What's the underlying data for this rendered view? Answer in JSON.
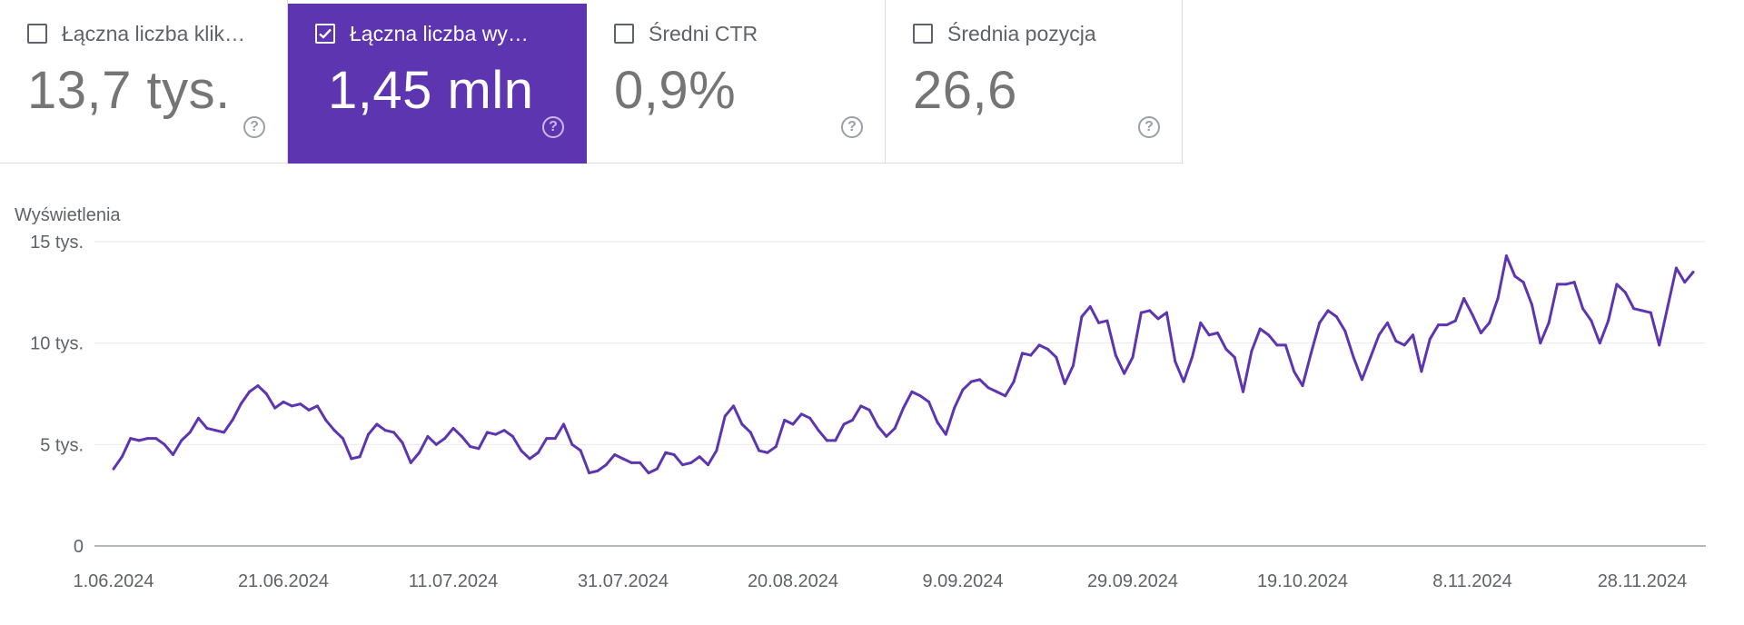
{
  "metric_cards": [
    {
      "title": "Łączna liczba klik…",
      "value": "13,7 tys.",
      "checked": false,
      "help_icon": "help-circle-icon"
    },
    {
      "title": "Łączna liczba wy…",
      "value": "1,45 mln",
      "checked": true,
      "help_icon": "help-circle-icon"
    },
    {
      "title": "Średni CTR",
      "value": "0,9%",
      "checked": false,
      "help_icon": "help-circle-icon"
    },
    {
      "title": "Średnia pozycja",
      "value": "26,6",
      "checked": false,
      "help_icon": "help-circle-icon"
    }
  ],
  "colors": {
    "accent": "#5e35b1",
    "line": "#5e35b1",
    "grid": "#e8eaed",
    "axis": "#9aa0a6",
    "text": "#5f6368"
  },
  "chart_data": {
    "type": "line",
    "ylabel": "Wyświetlenia",
    "ylim": [
      0,
      15000
    ],
    "y_ticks": [
      {
        "value": 0,
        "label": "0"
      },
      {
        "value": 5000,
        "label": "5 tys."
      },
      {
        "value": 10000,
        "label": "10 tys."
      },
      {
        "value": 15000,
        "label": "15 tys."
      }
    ],
    "x_tick_labels": [
      "1.06.2024",
      "21.06.2024",
      "11.07.2024",
      "31.07.2024",
      "20.08.2024",
      "9.09.2024",
      "29.09.2024",
      "19.10.2024",
      "8.11.2024",
      "28.11.2024"
    ],
    "x_tick_interval_days": 20,
    "grid": true,
    "legend": "none",
    "series": [
      {
        "values": [
          3800,
          4400,
          5300,
          5200,
          5300,
          5300,
          5000,
          4500,
          5200,
          5600,
          6300,
          5800,
          5700,
          5600,
          6200,
          7000,
          7600,
          7900,
          7500,
          6800,
          7100,
          6900,
          7000,
          6700,
          6900,
          6200,
          5700,
          5300,
          4300,
          4400,
          5500,
          6000,
          5700,
          5600,
          5100,
          4100,
          4600,
          5400,
          5000,
          5300,
          5800,
          5400,
          4900,
          4800,
          5600,
          5500,
          5700,
          5400,
          4700,
          4300,
          4600,
          5300,
          5300,
          6000,
          5000,
          4700,
          3600,
          3700,
          4000,
          4500,
          4300,
          4100,
          4100,
          3600,
          3800,
          4600,
          4500,
          4000,
          4100,
          4400,
          4000,
          4700,
          6400,
          6900,
          6000,
          5600,
          4700,
          4600,
          4900,
          6200,
          6000,
          6500,
          6300,
          5700,
          5200,
          5200,
          6000,
          6200,
          6900,
          6700,
          5900,
          5400,
          5800,
          6800,
          7600,
          7400,
          7100,
          6100,
          5500,
          6800,
          7700,
          8100,
          8200,
          7800,
          7600,
          7400,
          8100,
          9500,
          9400,
          9900,
          9700,
          9300,
          8000,
          8900,
          11300,
          11800,
          11000,
          11100,
          9400,
          8500,
          9300,
          11500,
          11600,
          11200,
          11500,
          9100,
          8100,
          9300,
          11000,
          10400,
          10500,
          9700,
          9300,
          7600,
          9600,
          10700,
          10400,
          9900,
          9900,
          8600,
          7900,
          9500,
          11000,
          11600,
          11300,
          10600,
          9300,
          8200,
          9300,
          10400,
          11000,
          10100,
          9900,
          10400,
          8600,
          10200,
          10900,
          10900,
          11100,
          12200,
          11400,
          10500,
          11000,
          12200,
          14300,
          13300,
          13000,
          11900,
          10000,
          11000,
          12900,
          12900,
          13000,
          11700,
          11100,
          10000,
          11100,
          12900,
          12500,
          11700,
          11600,
          11500,
          9900,
          11800,
          13700,
          13000,
          13500
        ]
      }
    ]
  }
}
